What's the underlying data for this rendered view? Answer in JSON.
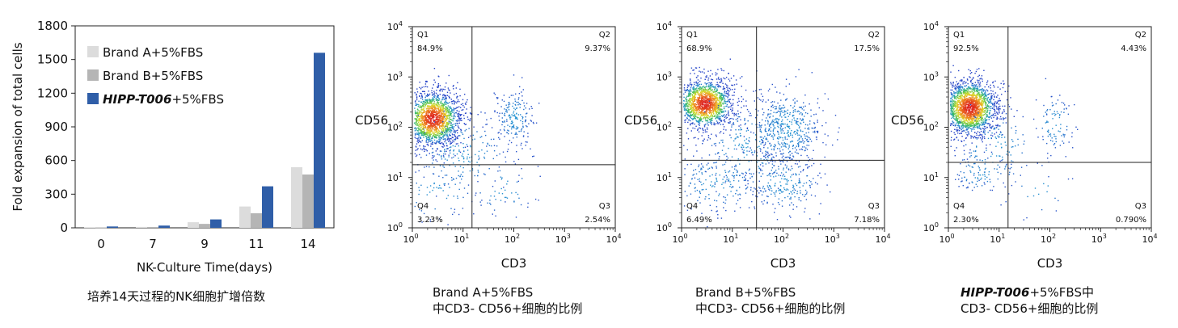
{
  "chart_data": [
    {
      "type": "bar",
      "xlabel": "NK-Culture Time(days)",
      "ylabel": "Fold expansion of total cells",
      "categories": [
        "0",
        "7",
        "9",
        "11",
        "14"
      ],
      "ylim": [
        0,
        1800
      ],
      "yticks": [
        "0",
        "300",
        "600",
        "900",
        "1200",
        "1500",
        "1800"
      ],
      "legend_position": "top-left",
      "series": [
        {
          "name": "Brand A+5%FBS",
          "name_italic": "",
          "name_rest": "Brand A+5%FBS",
          "color": "#dcdcdc",
          "values": [
            5,
            8,
            50,
            190,
            540
          ]
        },
        {
          "name": "Brand B+5%FBS",
          "name_italic": "",
          "name_rest": "Brand B+5%FBS",
          "color": "#b5b5b5",
          "values": [
            4,
            7,
            35,
            130,
            475
          ]
        },
        {
          "name": "HIPP-T006+5%FBS",
          "name_italic": "HIPP-T006",
          "name_rest": "+5%FBS",
          "color": "#2f5ea8",
          "values": [
            12,
            20,
            75,
            370,
            1560
          ]
        }
      ],
      "caption": "培养14天过程的NK细胞扩增倍数"
    },
    {
      "type": "scatter",
      "scale": "log",
      "xlabel": "CD3",
      "ylabel": "CD56",
      "xlim": [
        1,
        10000
      ],
      "ylim": [
        1,
        10000
      ],
      "gate": {
        "x": 15,
        "y": 18
      },
      "quadrants": {
        "Q1": "84.9%",
        "Q2": "9.37%",
        "Q3": "2.54%",
        "Q4": "3.23%"
      },
      "populations": [
        {
          "cx": 2.5,
          "cy": 150,
          "sx": 0.28,
          "sy": 0.28,
          "n": 1700
        },
        {
          "cx": 100,
          "cy": 160,
          "sx": 0.18,
          "sy": 0.28,
          "n": 190
        },
        {
          "cx": 3,
          "cy": 5,
          "sx": 0.4,
          "sy": 0.3,
          "n": 70
        },
        {
          "cx": 60,
          "cy": 6,
          "sx": 0.35,
          "sy": 0.3,
          "n": 55
        },
        {
          "cx": 10,
          "cy": 30,
          "sx": 0.5,
          "sy": 0.4,
          "n": 220
        }
      ],
      "caption_line1_italic": "",
      "caption_line1": "Brand A+5%FBS",
      "caption_line2": "中CD3- CD56+细胞的比例"
    },
    {
      "type": "scatter",
      "scale": "log",
      "xlabel": "CD3",
      "ylabel": "CD56",
      "xlim": [
        1,
        10000
      ],
      "ylim": [
        1,
        10000
      ],
      "gate": {
        "x": 30,
        "y": 22
      },
      "quadrants": {
        "Q1": "68.9%",
        "Q2": "17.5%",
        "Q3": "7.18%",
        "Q4": "6.49%"
      },
      "populations": [
        {
          "cx": 2.8,
          "cy": 300,
          "sx": 0.28,
          "sy": 0.25,
          "n": 1500
        },
        {
          "cx": 120,
          "cy": 100,
          "sx": 0.35,
          "sy": 0.4,
          "n": 500
        },
        {
          "cx": 5,
          "cy": 8,
          "sx": 0.45,
          "sy": 0.3,
          "n": 200
        },
        {
          "cx": 100,
          "cy": 8,
          "sx": 0.4,
          "sy": 0.3,
          "n": 220
        },
        {
          "cx": 20,
          "cy": 40,
          "sx": 0.5,
          "sy": 0.5,
          "n": 250
        }
      ],
      "caption_line1_italic": "",
      "caption_line1": "Brand B+5%FBS",
      "caption_line2": "中CD3- CD56+细胞的比例"
    },
    {
      "type": "scatter",
      "scale": "log",
      "xlabel": "CD3",
      "ylabel": "CD56",
      "xlim": [
        1,
        10000
      ],
      "ylim": [
        1,
        10000
      ],
      "gate": {
        "x": 15,
        "y": 20
      },
      "quadrants": {
        "Q1": "92.5%",
        "Q2": "4.43%",
        "Q3": "0.790%",
        "Q4": "2.30%"
      },
      "populations": [
        {
          "cx": 2.6,
          "cy": 250,
          "sx": 0.27,
          "sy": 0.28,
          "n": 1900
        },
        {
          "cx": 120,
          "cy": 120,
          "sx": 0.2,
          "sy": 0.3,
          "n": 90
        },
        {
          "cx": 4,
          "cy": 12,
          "sx": 0.3,
          "sy": 0.2,
          "n": 80
        },
        {
          "cx": 60,
          "cy": 6,
          "sx": 0.3,
          "sy": 0.3,
          "n": 20
        },
        {
          "cx": 8,
          "cy": 40,
          "sx": 0.45,
          "sy": 0.45,
          "n": 150
        }
      ],
      "caption_line1_italic": "HIPP-T006",
      "caption_line1": "+5%FBS中",
      "caption_line2": "CD3- CD56+细胞的比例"
    }
  ]
}
